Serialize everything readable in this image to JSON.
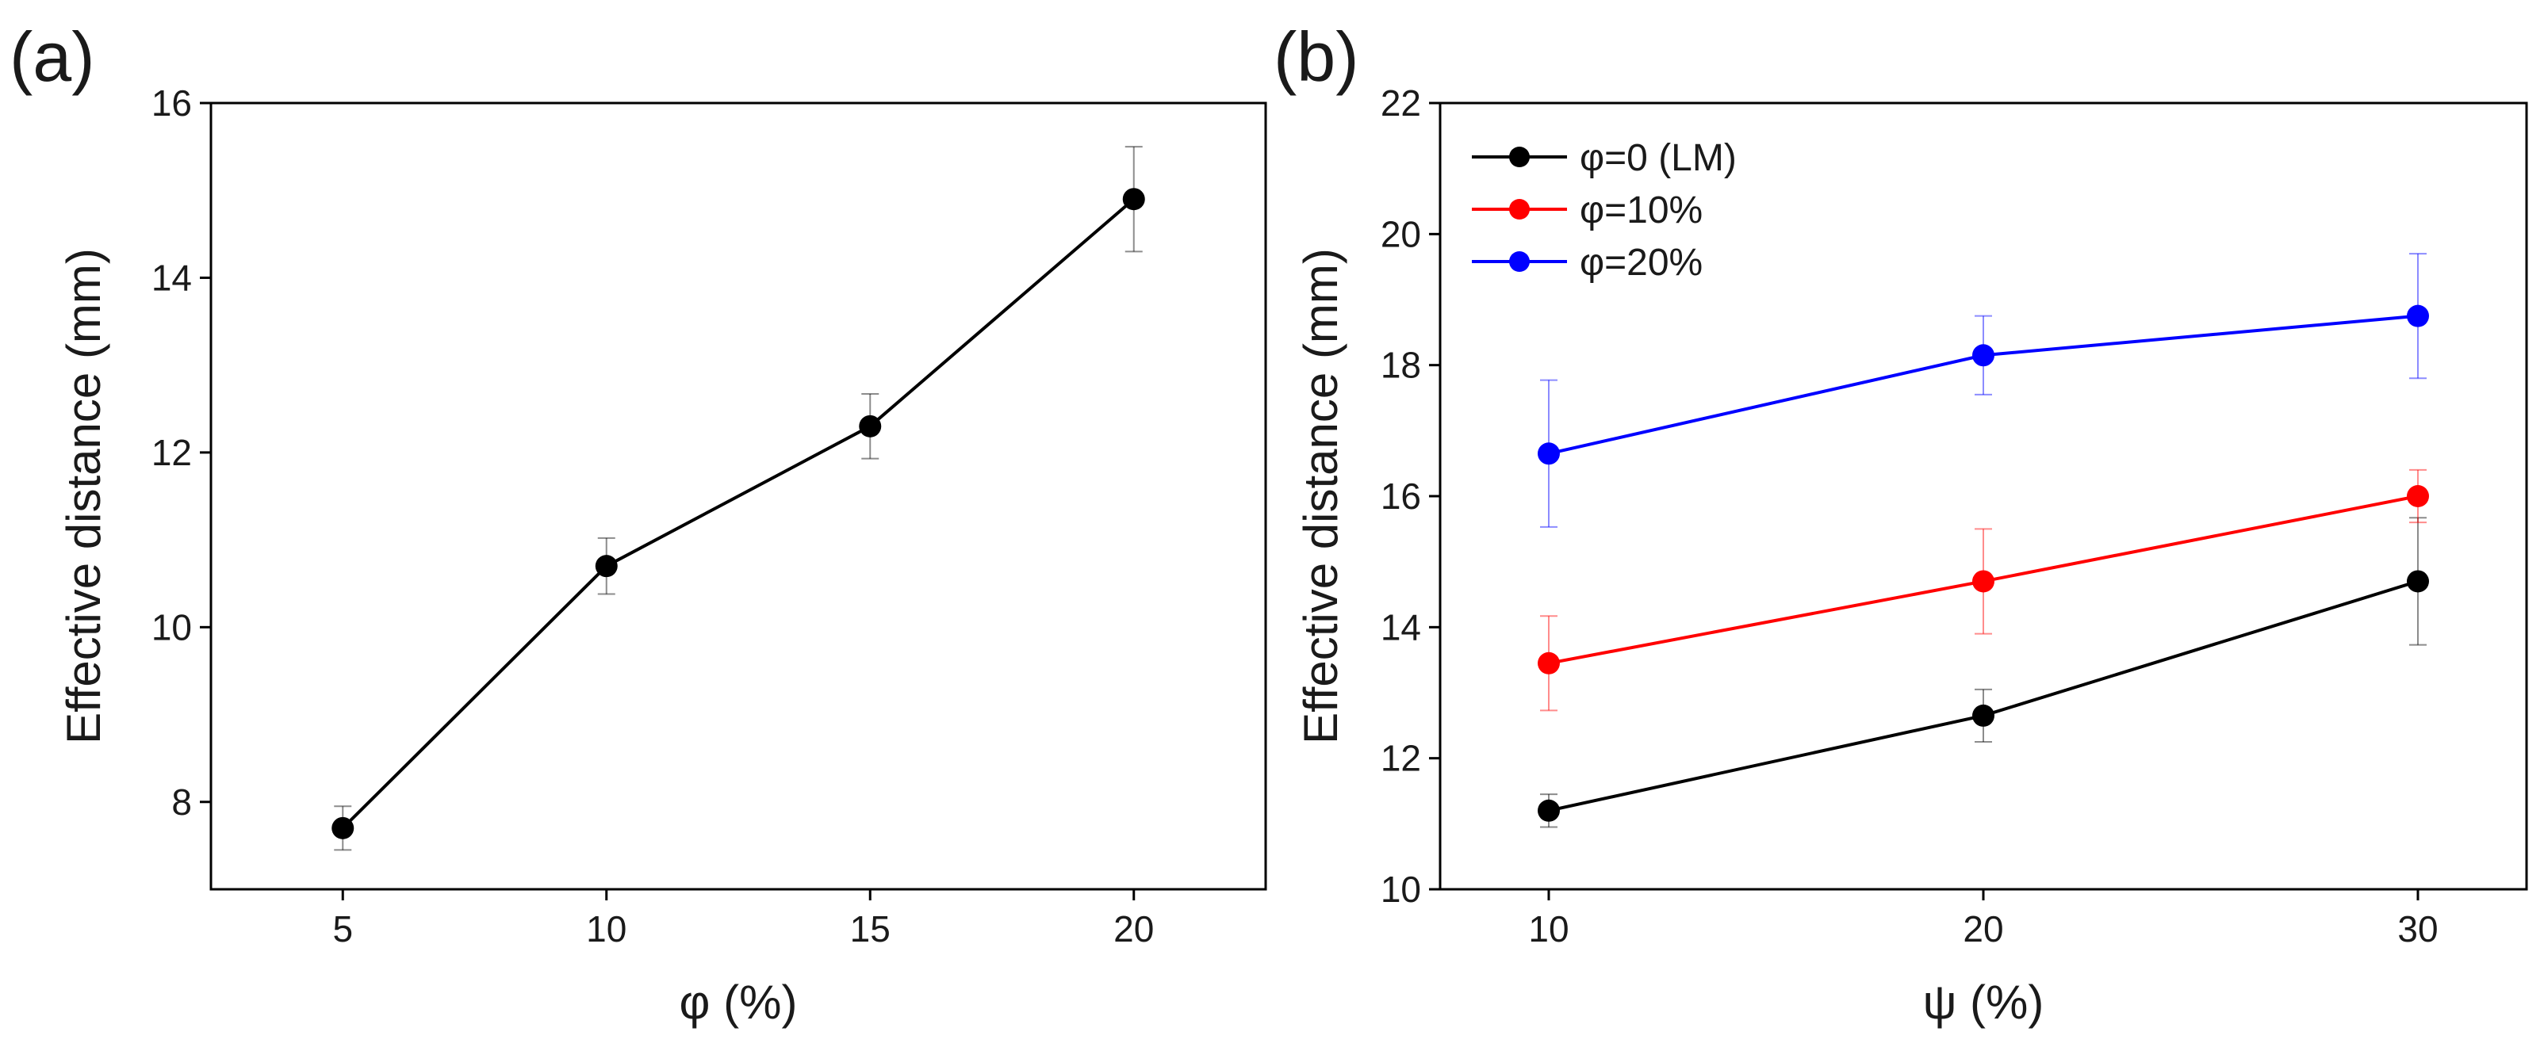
{
  "chart_data": [
    {
      "panel": "(a)",
      "type": "line",
      "xlabel": "φ (%)",
      "ylabel": "Effective distance (mm)",
      "xlim": [
        2.5,
        22.5
      ],
      "ylim": [
        7,
        16
      ],
      "xticks": [
        5,
        10,
        15,
        20
      ],
      "yticks": [
        8,
        10,
        12,
        14,
        16
      ],
      "series": [
        {
          "name": "",
          "color": "#000000",
          "x": [
            5,
            10,
            15,
            20
          ],
          "y": [
            7.7,
            10.7,
            12.3,
            14.9
          ],
          "err": [
            0.25,
            0.32,
            0.37,
            0.6
          ]
        }
      ]
    },
    {
      "panel": "(b)",
      "type": "line",
      "xlabel": "ψ (%)",
      "ylabel": "Effective distance (mm)",
      "xlim": [
        7.5,
        32.5
      ],
      "ylim": [
        10,
        22
      ],
      "xticks": [
        10,
        20,
        30
      ],
      "yticks": [
        10,
        12,
        14,
        16,
        18,
        20,
        22
      ],
      "legend_position": "top-left",
      "series": [
        {
          "name": "φ=0 (LM)",
          "color": "#000000",
          "x": [
            10,
            20,
            30
          ],
          "y": [
            11.2,
            12.65,
            14.7
          ],
          "err": [
            0.25,
            0.4,
            0.97
          ]
        },
        {
          "name": "φ=10%",
          "color": "#ff0000",
          "x": [
            10,
            20,
            30
          ],
          "y": [
            13.45,
            14.7,
            16.0
          ],
          "err": [
            0.72,
            0.8,
            0.4
          ]
        },
        {
          "name": "φ=20%",
          "color": "#0000ff",
          "x": [
            10,
            20,
            30
          ],
          "y": [
            16.65,
            18.15,
            18.75
          ],
          "err": [
            1.12,
            0.6,
            0.95
          ]
        }
      ]
    }
  ]
}
